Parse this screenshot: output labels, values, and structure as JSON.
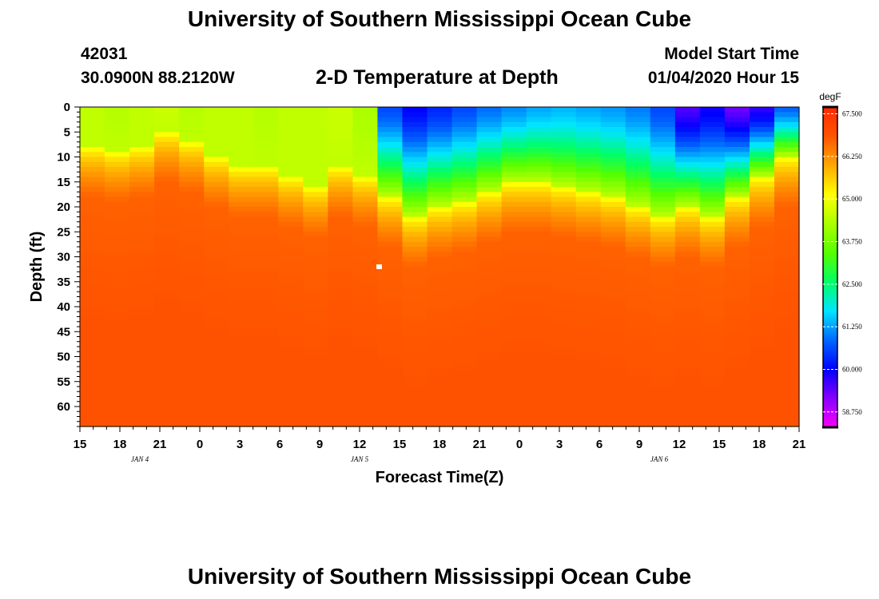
{
  "header": {
    "title": "University of Southern Mississippi Ocean Cube",
    "station_id": "42031",
    "coordinates": "30.0900N 88.2120W",
    "plot_title": "2-D Temperature at Depth",
    "model_start_label": "Model Start Time",
    "model_start_value": "01/04/2020 Hour 15"
  },
  "footer": {
    "title": "University of Southern Mississippi Ocean Cube"
  },
  "chart_data": {
    "type": "heatmap",
    "title": "2-D Temperature at Depth",
    "xlabel": "Forecast Time(Z)",
    "ylabel": "Depth (ft)",
    "x_tick_labels": [
      "15",
      "18",
      "21",
      "0",
      "3",
      "6",
      "9",
      "12",
      "15",
      "18",
      "21",
      "0",
      "3",
      "6",
      "9",
      "12",
      "15",
      "18",
      "21"
    ],
    "x_hours_from_start": [
      0,
      3,
      6,
      9,
      12,
      15,
      18,
      21,
      24,
      27,
      30,
      33,
      36,
      39,
      42,
      45,
      48,
      51,
      54
    ],
    "date_labels": [
      {
        "label": "JAN 4",
        "hour": 4.5
      },
      {
        "label": "JAN 5",
        "hour": 21
      },
      {
        "label": "JAN 6",
        "hour": 43.5
      }
    ],
    "y_ticks": [
      0,
      5,
      10,
      15,
      20,
      25,
      30,
      35,
      40,
      45,
      50,
      55,
      60
    ],
    "ylim": [
      0,
      64
    ],
    "xlim": [
      0,
      54
    ],
    "colorbar": {
      "unit": "degF",
      "ticks": [
        "67.500",
        "66.250",
        "65.000",
        "63.750",
        "62.500",
        "61.250",
        "60.000",
        "58.750"
      ],
      "range": [
        58.3,
        67.7
      ],
      "colors": [
        "#ff00ff",
        "#8800ff",
        "#0000ff",
        "#0066ff",
        "#00e5ff",
        "#00ff66",
        "#55ff00",
        "#aaff00",
        "#ffff00",
        "#ffaa00",
        "#ff5500",
        "#ff2a00"
      ]
    },
    "surface_temp_degF": [
      64.5,
      64.4,
      64.5,
      64.6,
      64.4,
      64.5,
      64.5,
      64.4,
      64.5,
      64.5,
      64.6,
      64.3,
      60.6,
      60.0,
      60.3,
      60.6,
      60.9,
      61.1,
      61.3,
      61.4,
      61.3,
      61.2,
      61.0,
      60.6,
      59.5,
      59.9,
      59.3,
      59.7,
      60.8
    ],
    "thermocline_depth_ft": [
      8,
      9,
      8,
      5,
      7,
      10,
      12,
      12,
      14,
      16,
      12,
      14,
      18,
      22,
      20,
      19,
      17,
      15,
      15,
      16,
      17,
      18,
      20,
      22,
      20,
      22,
      18,
      14,
      10
    ],
    "bottom_temp_degF": 66.9
  }
}
